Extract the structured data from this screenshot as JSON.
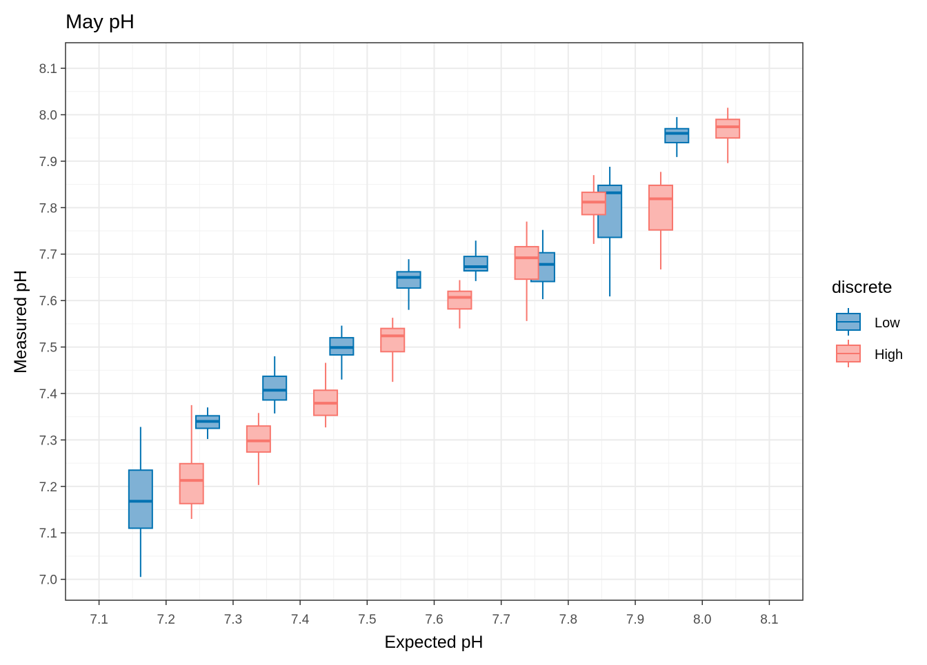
{
  "chart_data": {
    "type": "boxplot",
    "title": "May pH",
    "xlabel": "Expected pH",
    "ylabel": "Measured pH",
    "xlim": [
      7.05,
      8.15
    ],
    "ylim": [
      6.955,
      8.155
    ],
    "x_ticks": [
      "7.1",
      "7.2",
      "7.3",
      "7.4",
      "7.5",
      "7.6",
      "7.7",
      "7.8",
      "7.9",
      "8.0",
      "8.1"
    ],
    "y_ticks": [
      "7.0",
      "7.1",
      "7.2",
      "7.3",
      "7.4",
      "7.5",
      "7.6",
      "7.7",
      "7.8",
      "7.9",
      "8.0",
      "8.1"
    ],
    "grid": true,
    "legend": {
      "title": "discrete",
      "position": "right",
      "entries": [
        "Low",
        "High"
      ]
    },
    "series": [
      {
        "name": "Low",
        "color": "#0072b2",
        "fill": "#7fb1d5",
        "boxes": [
          {
            "x": "7.2",
            "min": 7.005,
            "q1": 7.11,
            "median": 7.168,
            "q3": 7.235,
            "max": 7.328
          },
          {
            "x": "7.3",
            "min": 7.302,
            "q1": 7.325,
            "median": 7.34,
            "q3": 7.352,
            "max": 7.37
          },
          {
            "x": "7.4",
            "min": 7.357,
            "q1": 7.386,
            "median": 7.407,
            "q3": 7.437,
            "max": 7.48
          },
          {
            "x": "7.5",
            "min": 7.43,
            "q1": 7.483,
            "median": 7.499,
            "q3": 7.52,
            "max": 7.546
          },
          {
            "x": "7.6",
            "min": 7.58,
            "q1": 7.627,
            "median": 7.65,
            "q3": 7.662,
            "max": 7.689
          },
          {
            "x": "7.7",
            "min": 7.642,
            "q1": 7.664,
            "median": 7.673,
            "q3": 7.695,
            "max": 7.729
          },
          {
            "x": "7.8",
            "min": 7.603,
            "q1": 7.641,
            "median": 7.678,
            "q3": 7.703,
            "max": 7.752
          },
          {
            "x": "7.9",
            "min": 7.609,
            "q1": 7.736,
            "median": 7.832,
            "q3": 7.848,
            "max": 7.888
          },
          {
            "x": "8.0",
            "min": 7.909,
            "q1": 7.94,
            "median": 7.96,
            "q3": 7.97,
            "max": 7.995
          }
        ]
      },
      {
        "name": "High",
        "color": "#f8766d",
        "fill": "#fbb6b1",
        "boxes": [
          {
            "x": "7.2",
            "min": 7.13,
            "q1": 7.163,
            "median": 7.213,
            "q3": 7.249,
            "max": 7.375
          },
          {
            "x": "7.3",
            "min": 7.203,
            "q1": 7.274,
            "median": 7.298,
            "q3": 7.33,
            "max": 7.358
          },
          {
            "x": "7.4",
            "min": 7.327,
            "q1": 7.353,
            "median": 7.379,
            "q3": 7.407,
            "max": 7.466
          },
          {
            "x": "7.5",
            "min": 7.425,
            "q1": 7.49,
            "median": 7.524,
            "q3": 7.54,
            "max": 7.563
          },
          {
            "x": "7.6",
            "min": 7.54,
            "q1": 7.582,
            "median": 7.607,
            "q3": 7.62,
            "max": 7.644
          },
          {
            "x": "7.7",
            "min": 7.556,
            "q1": 7.646,
            "median": 7.692,
            "q3": 7.716,
            "max": 7.77
          },
          {
            "x": "7.8",
            "min": 7.722,
            "q1": 7.785,
            "median": 7.812,
            "q3": 7.833,
            "max": 7.87
          },
          {
            "x": "7.9",
            "min": 7.667,
            "q1": 7.752,
            "median": 7.819,
            "q3": 7.848,
            "max": 7.877
          },
          {
            "x": "8.0",
            "min": 7.896,
            "q1": 7.95,
            "median": 7.974,
            "q3": 7.99,
            "max": 8.015
          }
        ]
      }
    ]
  }
}
